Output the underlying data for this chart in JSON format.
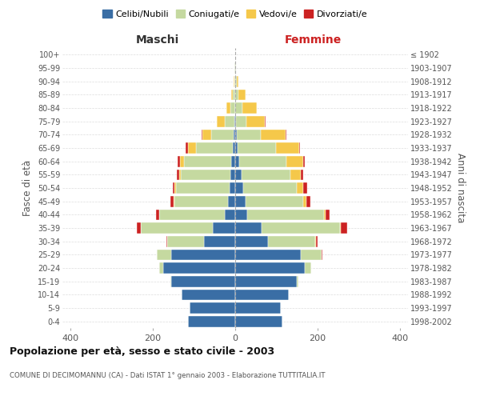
{
  "age_groups": [
    "0-4",
    "5-9",
    "10-14",
    "15-19",
    "20-24",
    "25-29",
    "30-34",
    "35-39",
    "40-44",
    "45-49",
    "50-54",
    "55-59",
    "60-64",
    "65-69",
    "70-74",
    "75-79",
    "80-84",
    "85-89",
    "90-94",
    "95-99",
    "100+"
  ],
  "birth_years": [
    "1998-2002",
    "1993-1997",
    "1988-1992",
    "1983-1987",
    "1978-1982",
    "1973-1977",
    "1968-1972",
    "1963-1967",
    "1958-1962",
    "1953-1957",
    "1948-1952",
    "1943-1947",
    "1938-1942",
    "1933-1937",
    "1928-1932",
    "1923-1927",
    "1918-1922",
    "1913-1917",
    "1908-1912",
    "1903-1907",
    "≤ 1902"
  ],
  "male": {
    "celibi": [
      115,
      110,
      130,
      155,
      175,
      155,
      75,
      55,
      25,
      18,
      14,
      12,
      10,
      5,
      3,
      1,
      0,
      0,
      0,
      0,
      0
    ],
    "coniugati": [
      0,
      0,
      0,
      3,
      10,
      35,
      90,
      175,
      160,
      130,
      130,
      120,
      115,
      90,
      55,
      25,
      12,
      5,
      2,
      1,
      0
    ],
    "vedovi": [
      0,
      0,
      0,
      0,
      0,
      0,
      0,
      0,
      0,
      1,
      3,
      5,
      10,
      20,
      22,
      18,
      10,
      4,
      1,
      0,
      0
    ],
    "divorziati": [
      0,
      0,
      0,
      0,
      0,
      0,
      2,
      10,
      8,
      8,
      5,
      5,
      5,
      5,
      2,
      0,
      0,
      0,
      0,
      0,
      0
    ]
  },
  "female": {
    "nubili": [
      115,
      110,
      130,
      150,
      170,
      160,
      80,
      65,
      30,
      25,
      20,
      15,
      10,
      5,
      3,
      2,
      0,
      0,
      0,
      0,
      0
    ],
    "coniugate": [
      0,
      0,
      0,
      3,
      15,
      50,
      115,
      190,
      185,
      140,
      130,
      120,
      115,
      95,
      60,
      25,
      18,
      8,
      3,
      1,
      0
    ],
    "vedove": [
      0,
      0,
      0,
      0,
      0,
      0,
      1,
      2,
      5,
      8,
      15,
      25,
      40,
      55,
      60,
      45,
      35,
      18,
      4,
      1,
      0
    ],
    "divorziate": [
      0,
      0,
      0,
      0,
      0,
      2,
      5,
      15,
      10,
      10,
      10,
      5,
      5,
      3,
      2,
      1,
      0,
      0,
      0,
      0,
      0
    ]
  },
  "colors": {
    "celibi": "#3a6ea5",
    "coniugati": "#c5d9a0",
    "vedovi": "#f5c84a",
    "divorziati": "#cc2222"
  },
  "xlim": 420,
  "title": "Popolazione per età, sesso e stato civile - 2003",
  "subtitle": "COMUNE DI DECIMOMANNU (CA) - Dati ISTAT 1° gennaio 2003 - Elaborazione TUTTITALIA.IT",
  "ylabel_left": "Fasce di età",
  "ylabel_right": "Anni di nascita",
  "xlabel_left": "Maschi",
  "xlabel_right": "Femmine"
}
